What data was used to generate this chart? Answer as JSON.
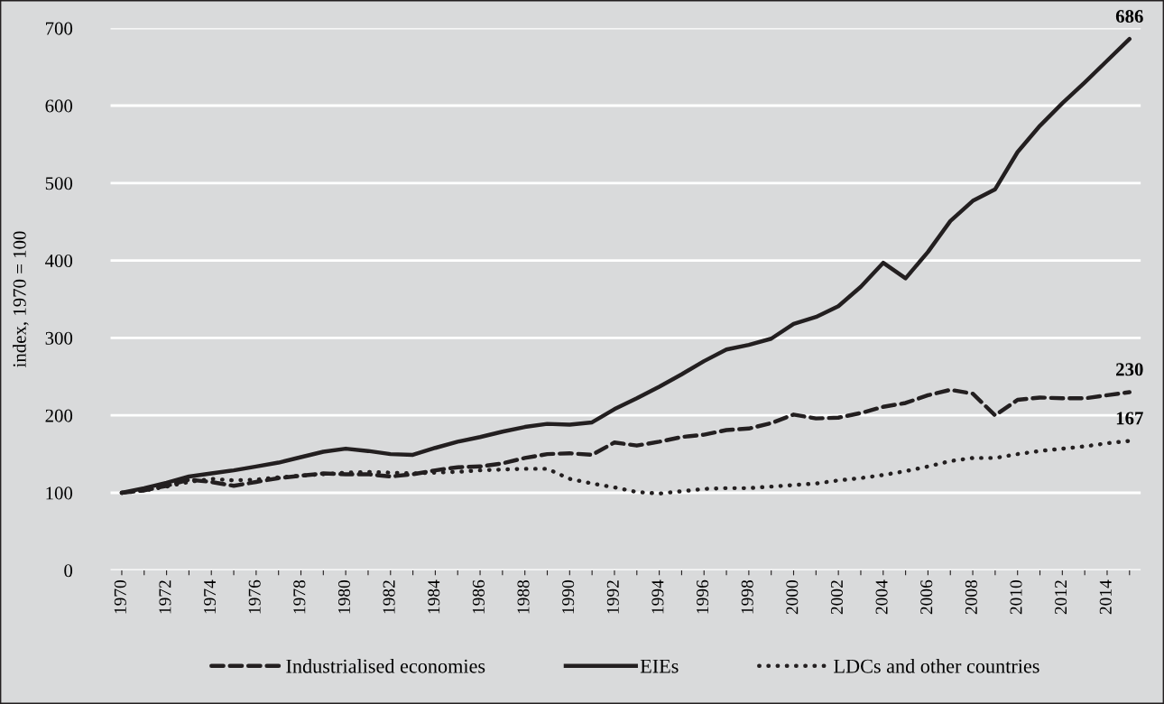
{
  "chart_data": {
    "type": "line",
    "ylabel": "index, 1970 = 100",
    "categories": [
      "1970",
      null,
      "1972",
      null,
      "1974",
      null,
      "1976",
      null,
      "1978",
      null,
      "1980",
      null,
      "1982",
      null,
      "1984",
      null,
      "1986",
      null,
      "1988",
      null,
      "1990",
      null,
      "1992",
      null,
      "1994",
      null,
      "1996",
      null,
      "1998",
      null,
      "2000",
      null,
      "2002",
      null,
      "2004",
      null,
      "2006",
      null,
      "2008",
      null,
      "2010",
      null,
      "2012",
      null,
      "2014",
      null
    ],
    "series": [
      {
        "name": "Industrialised economies",
        "color": "#231f20",
        "line_style": "dashed",
        "values": [
          100,
          103,
          109,
          117,
          114,
          109,
          114,
          119,
          122,
          125,
          124,
          124,
          121,
          124,
          129,
          133,
          134,
          138,
          145,
          150,
          151,
          149,
          165,
          161,
          166,
          172,
          175,
          181,
          183,
          190,
          201,
          196,
          197,
          203,
          211,
          216,
          226,
          233,
          228,
          200,
          220,
          223,
          222,
          222,
          226,
          230
        ],
        "value_labels": [
          null,
          null,
          null,
          null,
          null,
          null,
          null,
          null,
          null,
          null,
          null,
          null,
          null,
          null,
          null,
          null,
          null,
          null,
          null,
          null,
          null,
          null,
          null,
          null,
          null,
          null,
          null,
          null,
          null,
          null,
          null,
          null,
          null,
          null,
          null,
          null,
          null,
          null,
          null,
          null,
          null,
          null,
          null,
          null,
          null,
          "230"
        ]
      },
      {
        "name": "EIEs",
        "color": "#231f20",
        "line_style": "solid",
        "values": [
          100,
          106,
          113,
          121,
          125,
          129,
          134,
          139,
          146,
          153,
          157,
          154,
          150,
          149,
          158,
          166,
          172,
          179,
          185,
          189,
          188,
          191,
          208,
          222,
          237,
          253,
          270,
          285,
          291,
          299,
          318,
          327,
          341,
          366,
          397,
          377,
          411,
          451,
          477,
          492,
          540,
          574,
          603,
          630,
          658,
          686
        ],
        "value_labels": [
          null,
          null,
          null,
          null,
          null,
          null,
          null,
          null,
          null,
          null,
          null,
          null,
          null,
          null,
          null,
          null,
          null,
          null,
          null,
          null,
          null,
          null,
          null,
          null,
          null,
          null,
          null,
          null,
          null,
          null,
          null,
          null,
          null,
          null,
          null,
          null,
          null,
          null,
          null,
          null,
          null,
          null,
          null,
          null,
          null,
          "686"
        ]
      },
      {
        "name": "LDCs and other countries",
        "color": "#231f20",
        "line_style": "dotted",
        "values": [
          100,
          103,
          108,
          114,
          118,
          116,
          117,
          120,
          122,
          124,
          126,
          127,
          126,
          125,
          126,
          127,
          129,
          130,
          131,
          131,
          118,
          112,
          107,
          101,
          99,
          102,
          105,
          106,
          106,
          108,
          110,
          112,
          116,
          119,
          123,
          128,
          134,
          141,
          145,
          145,
          150,
          154,
          157,
          160,
          164,
          167
        ],
        "value_labels": [
          null,
          null,
          null,
          null,
          null,
          null,
          null,
          null,
          null,
          null,
          null,
          null,
          null,
          null,
          null,
          null,
          null,
          null,
          null,
          null,
          null,
          null,
          null,
          null,
          null,
          null,
          null,
          null,
          null,
          null,
          null,
          null,
          null,
          null,
          null,
          null,
          null,
          null,
          null,
          null,
          null,
          null,
          null,
          null,
          null,
          "167"
        ]
      }
    ],
    "ylim": [
      0,
      700
    ],
    "yticks": [
      0,
      100,
      200,
      300,
      400,
      500,
      600,
      700
    ],
    "grid": "y",
    "legend": "bottom",
    "marker": "none"
  }
}
